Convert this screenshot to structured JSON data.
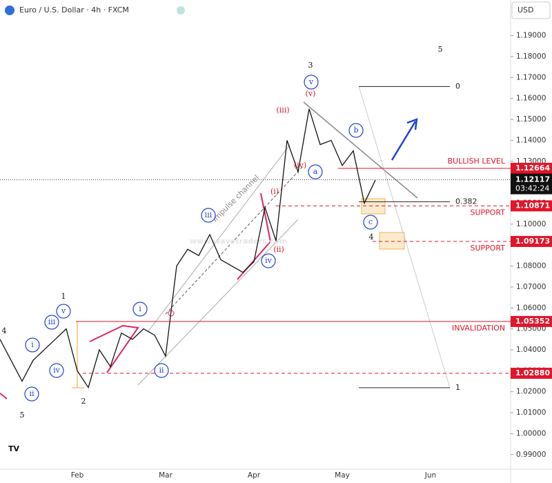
{
  "chart_data": {
    "type": "line",
    "title": "Euro / U.S. Dollar · 4h · FXCM",
    "currency": "USD",
    "watermark": "www.wavetraders.com",
    "channel_label": "Impulse channel",
    "categories": [
      null,
      null,
      null,
      null,
      null,
      null,
      null,
      "Feb",
      null,
      null,
      null,
      null,
      null,
      null,
      null,
      "Mar",
      null,
      null,
      null,
      null,
      null,
      null,
      null,
      "Apr",
      null,
      null,
      null,
      null,
      null,
      null,
      null,
      "May",
      null,
      null,
      null,
      null,
      null,
      null,
      null,
      "Jun",
      null,
      null,
      null,
      null,
      null,
      null
    ],
    "series": [
      {
        "name": "EURUSD",
        "color": "#111111",
        "values": [
          1.045,
          1.035,
          1.025,
          1.035,
          1.04,
          1.045,
          1.05,
          1.03,
          1.022,
          1.04,
          1.032,
          1.048,
          1.045,
          1.05,
          1.047,
          1.037,
          1.08,
          1.088,
          1.085,
          1.095,
          1.083,
          1.08,
          1.077,
          1.082,
          1.108,
          1.092,
          1.14,
          1.125,
          1.155,
          1.138,
          1.14,
          1.128,
          1.135,
          1.11,
          1.121,
          null,
          null,
          null,
          null,
          null,
          null,
          null,
          null,
          null,
          null,
          null
        ]
      }
    ],
    "ylim": [
      0.983,
      1.207
    ],
    "yticks": [
      {
        "value": 1.19,
        "label": "1.19000"
      },
      {
        "value": 1.18,
        "label": "1.18000"
      },
      {
        "value": 1.17,
        "label": "1.17000"
      },
      {
        "value": 1.16,
        "label": "1.16000"
      },
      {
        "value": 1.15,
        "label": "1.15000"
      },
      {
        "value": 1.14,
        "label": "1.14000"
      },
      {
        "value": 1.13,
        "label": "1.13000"
      },
      {
        "value": 1.12,
        "label": "1.12000"
      },
      {
        "value": 1.11,
        "label": "1.11000"
      },
      {
        "value": 1.1,
        "label": "1.10000"
      },
      {
        "value": 1.09,
        "label": "1.09000"
      },
      {
        "value": 1.08,
        "label": "1.08000"
      },
      {
        "value": 1.07,
        "label": "1.07000"
      },
      {
        "value": 1.06,
        "label": "1.06000"
      },
      {
        "value": 1.05,
        "label": "1.05000"
      },
      {
        "value": 1.04,
        "label": "1.04000"
      },
      {
        "value": 1.03,
        "label": "1.03000"
      },
      {
        "value": 1.02,
        "label": "1.02000"
      },
      {
        "value": 1.01,
        "label": "1.01000"
      },
      {
        "value": 1.0,
        "label": "1.00000"
      },
      {
        "value": 0.99,
        "label": "0.99000"
      }
    ],
    "current_price": {
      "value": 1.12117,
      "countdown": "03:42:24"
    },
    "levels": [
      {
        "name": "BULLISH LEVEL",
        "value": 1.12664,
        "label": "1.12664",
        "style": "solid"
      },
      {
        "name": "SUPPORT",
        "value": 1.10871,
        "label": "1.10871",
        "style": "dashed"
      },
      {
        "name": "SUPPORT",
        "value": 1.09173,
        "label": "1.09173",
        "style": "dashed"
      },
      {
        "name": "INVALIDATION",
        "value": 1.05352,
        "label": "1.05352",
        "style": "solid"
      },
      {
        "value": 1.0288,
        "label": "1.02880",
        "style": "dashed"
      }
    ],
    "fib": [
      {
        "ratio": 0,
        "price": 1.1657
      },
      {
        "ratio": 0.382,
        "price": 1.1107
      },
      {
        "ratio": 1,
        "price": 1.0219
      }
    ],
    "annotations": [
      {
        "text": "4",
        "style": "black"
      },
      {
        "text": "5",
        "style": "black"
      },
      {
        "text": "1",
        "style": "black"
      },
      {
        "text": "2",
        "style": "black"
      },
      {
        "text": "3",
        "style": "black"
      },
      {
        "text": "5",
        "style": "black"
      },
      {
        "text": "4",
        "style": "black"
      },
      {
        "text": "ii",
        "style": "circle"
      },
      {
        "text": "iv",
        "style": "circle"
      },
      {
        "text": "iii",
        "style": "circle"
      },
      {
        "text": "v",
        "style": "circle"
      },
      {
        "text": "i",
        "style": "circle"
      },
      {
        "text": "ii",
        "style": "circle"
      },
      {
        "text": "i",
        "style": "circle"
      },
      {
        "text": "iii",
        "style": "circle"
      },
      {
        "text": "iv",
        "style": "circle"
      },
      {
        "text": "v",
        "style": "circle"
      },
      {
        "text": "a",
        "style": "circle"
      },
      {
        "text": "b",
        "style": "circle"
      },
      {
        "text": "c",
        "style": "circle"
      },
      {
        "text": "(v)",
        "style": "red"
      },
      {
        "text": "(iii)",
        "style": "red"
      },
      {
        "text": "(iv)",
        "style": "red"
      },
      {
        "text": "(i)",
        "style": "red"
      },
      {
        "text": "(ii)",
        "style": "red"
      }
    ]
  }
}
